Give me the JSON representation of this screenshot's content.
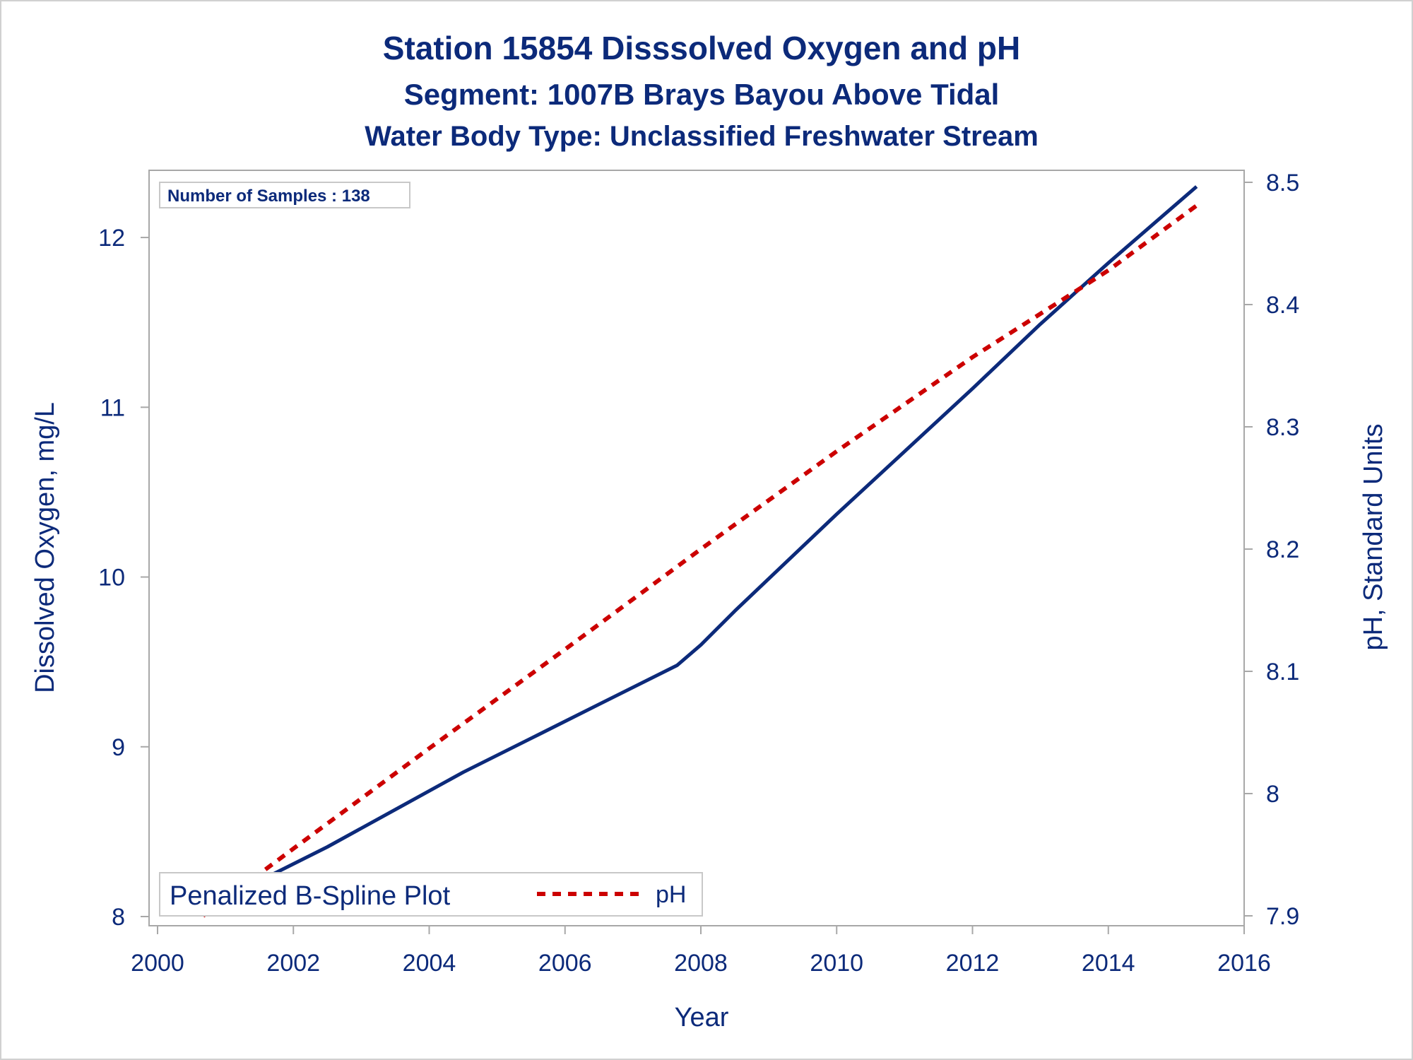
{
  "chart_data": {
    "type": "line",
    "title": "Station 15854   Disssolved Oxygen and pH",
    "subtitle": "Segment: 1007B  Brays Bayou Above Tidal",
    "subtitle2": "Water Body Type: Unclassified Freshwater Stream",
    "xlabel": "Year",
    "ylabel_left": "Dissolved Oxygen, mg/L",
    "ylabel_right": "pH, Standard Units",
    "xlim": [
      2000,
      2016
    ],
    "ylim_left": [
      8,
      12.3
    ],
    "ylim_right": [
      7.9,
      8.5
    ],
    "x_ticks": [
      "2000",
      "2002",
      "2004",
      "2006",
      "2008",
      "2010",
      "2012",
      "2014",
      "2016"
    ],
    "y_left_ticks": [
      "8",
      "9",
      "10",
      "11",
      "12"
    ],
    "y_right_ticks": [
      "7.9",
      "8",
      "8.1",
      "8.2",
      "8.3",
      "8.4",
      "8.5"
    ],
    "annotation": "Number of Samples : 138",
    "legend": {
      "title": "Penalized B-Spline Plot",
      "placement": "bottom-left"
    },
    "series": [
      {
        "axis": "left",
        "color": "#0c2a7a",
        "style": "solid",
        "points": [
          [
            2000.67,
            8.04
          ],
          [
            2001.5,
            8.21
          ],
          [
            2002.5,
            8.41
          ],
          [
            2003.5,
            8.63
          ],
          [
            2004.5,
            8.85
          ],
          [
            2005.5,
            9.05
          ],
          [
            2006.5,
            9.25
          ],
          [
            2007.65,
            9.48
          ],
          [
            2008.0,
            9.6
          ],
          [
            2008.5,
            9.8
          ],
          [
            2009.0,
            9.99
          ],
          [
            2010.0,
            10.37
          ],
          [
            2011.0,
            10.74
          ],
          [
            2012.0,
            11.11
          ],
          [
            2013.0,
            11.49
          ],
          [
            2014.0,
            11.85
          ],
          [
            2015.3,
            12.3
          ]
        ]
      },
      {
        "name": "pH",
        "axis": "right",
        "color": "#cc0000",
        "style": "dashed",
        "points": [
          [
            2000.67,
            7.9
          ],
          [
            2002.0,
            7.955
          ],
          [
            2004.0,
            8.037
          ],
          [
            2006.0,
            8.118
          ],
          [
            2008.0,
            8.2
          ],
          [
            2010.0,
            8.28
          ],
          [
            2012.0,
            8.357
          ],
          [
            2014.0,
            8.428
          ],
          [
            2015.3,
            8.481
          ]
        ]
      }
    ]
  }
}
